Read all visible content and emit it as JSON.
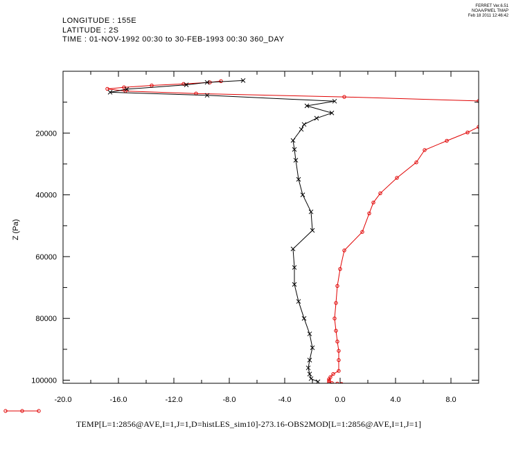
{
  "header": {
    "longitude": "LONGITUDE : 155E",
    "latitude": "LATITUDE : 2S",
    "time": "TIME : 01-NOV-1992 00:30 to 30-FEB-1993 00:30 360_DAY"
  },
  "stamp": {
    "line1": "FERRET  Ver.6.51",
    "line2": "NOAA/PMEL TMAP",
    "line3": "Feb 18 2011 12:46:42"
  },
  "colors": {
    "series1": "#e00000",
    "series2": "#000000",
    "axis": "#000000"
  },
  "chart_data": {
    "type": "line",
    "title": "",
    "xlabel": "TEMP[L=1:2856@AVE,I=1,J=1,D=histLES_sim10]-273.16-OBS2MOD[L=1:2856@AVE,I=1,J=1]",
    "ylabel": "Z (Pa)",
    "xlim": [
      -20,
      10
    ],
    "ylim": [
      0,
      101000
    ],
    "y_inverted": true,
    "xticks": [
      -20,
      -16,
      -12,
      -8,
      -4,
      0,
      4,
      8
    ],
    "xtick_labels": [
      "-20.0",
      "-16.0",
      "-12.0",
      "-8.0",
      "-4.0",
      "0.0",
      "4.0",
      "8.0"
    ],
    "yticks": [
      20000,
      40000,
      60000,
      80000,
      100000
    ],
    "ytick_labels": [
      "20000",
      "40000",
      "60000",
      "80000",
      "100000"
    ],
    "grid": false,
    "legend": "bottom-left",
    "series": [
      {
        "marker": "circle",
        "color": "#e00000",
        "x": [
          -8.6,
          -9.4,
          -11.3,
          -13.6,
          -15.6,
          -16.8,
          -15.5,
          -10.4,
          0.3,
          10.0
        ],
        "y": [
          3200,
          3600,
          4100,
          4600,
          5200,
          5700,
          6400,
          7200,
          8300,
          9600
        ],
        "x2": [
          10.0,
          9.2,
          7.7,
          6.1,
          5.5,
          4.1,
          2.9,
          2.4,
          2.1,
          1.6,
          0.3,
          0.0,
          -0.2,
          -0.3,
          -0.4,
          -0.3,
          -0.2,
          -0.1,
          -0.1,
          -0.1,
          -0.5,
          -0.7,
          -0.8,
          -0.8,
          -0.8,
          -0.6,
          -0.2,
          0.1
        ],
        "y2": [
          18000,
          19800,
          22500,
          25500,
          29500,
          34500,
          39500,
          42500,
          46000,
          52000,
          58000,
          64000,
          69500,
          75000,
          80000,
          84000,
          87500,
          90500,
          93500,
          97000,
          98000,
          99000,
          99700,
          100200,
          100600,
          100900,
          101100,
          101200
        ]
      },
      {
        "marker": "x",
        "color": "#000000",
        "x": [
          -7.0,
          -9.6,
          -11.1,
          -15.4,
          -16.6,
          -9.6,
          -0.4,
          -2.4,
          -0.6,
          -1.7,
          -2.6,
          -2.8,
          -3.4,
          -3.3,
          -3.2,
          -3.0,
          -2.7,
          -2.1,
          -2.0,
          -3.4,
          -3.3,
          -3.3,
          -3.0,
          -2.6,
          -2.2,
          -2.0,
          -2.2,
          -2.3,
          -2.2,
          -2.1,
          -1.6
        ],
        "y": [
          3000,
          3600,
          4400,
          5800,
          6800,
          7800,
          9700,
          11200,
          13500,
          15200,
          17200,
          18800,
          22400,
          25300,
          28800,
          35000,
          40000,
          45500,
          51500,
          57500,
          63500,
          69000,
          74500,
          80000,
          85000,
          89500,
          93500,
          96000,
          98000,
          99500,
          100500
        ]
      }
    ]
  }
}
